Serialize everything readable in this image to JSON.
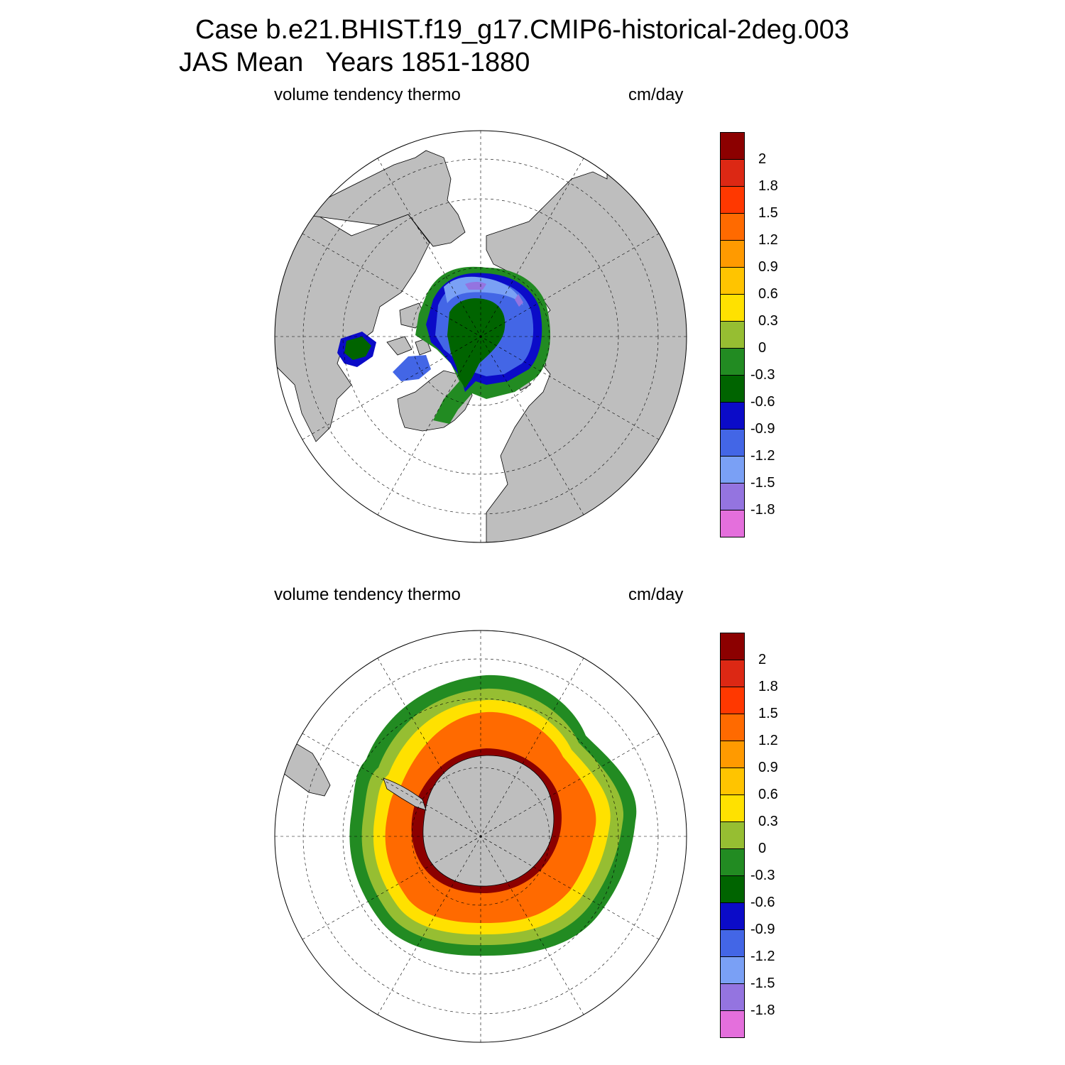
{
  "title": {
    "line1": "Case b.e21.BHIST.f19_g17.CMIP6-historical-2deg.003",
    "line2": "JAS Mean   Years 1851-1880"
  },
  "colorbar": {
    "colors": [
      "#e46fdc",
      "#9474e0",
      "#7aa0f5",
      "#4366e6",
      "#0b0bc8",
      "#006400",
      "#228b22",
      "#96be32",
      "#ffe100",
      "#ffc400",
      "#ff9a00",
      "#ff6a00",
      "#ff3800",
      "#dc2814",
      "#8c0000"
    ],
    "labels": [
      "-1.8",
      "-1.5",
      "-1.2",
      "-0.9",
      "-0.6",
      "-0.3",
      "0",
      "0.3",
      "0.6",
      "0.9",
      "1.2",
      "1.5",
      "1.8",
      "2"
    ]
  },
  "panels": [
    {
      "id": "arctic",
      "left_label": "volume tendency thermo",
      "right_label": "cm/day",
      "hemisphere": "north",
      "land_color": "#bebebe",
      "ice_fields": [
        {
          "level": -0.6,
          "color": "#228b22"
        },
        {
          "level": -0.9,
          "color": "#0b0bc8"
        },
        {
          "level": -1.2,
          "color": "#4366e6"
        },
        {
          "level": -1.5,
          "color": "#7aa0f5"
        },
        {
          "level": -1.8,
          "color": "#9474e0"
        }
      ]
    },
    {
      "id": "antarctic",
      "left_label": "volume tendency thermo",
      "right_label": "cm/day",
      "hemisphere": "south",
      "land_color": "#bebebe",
      "ice_fields": [
        {
          "level": -0.3,
          "color": "#228b22"
        },
        {
          "level": 0.3,
          "color": "#96be32"
        },
        {
          "level": 0.6,
          "color": "#ffe100"
        },
        {
          "level": 1.2,
          "color": "#ff6a00"
        },
        {
          "level": 2.0,
          "color": "#8c0000"
        }
      ]
    }
  ]
}
